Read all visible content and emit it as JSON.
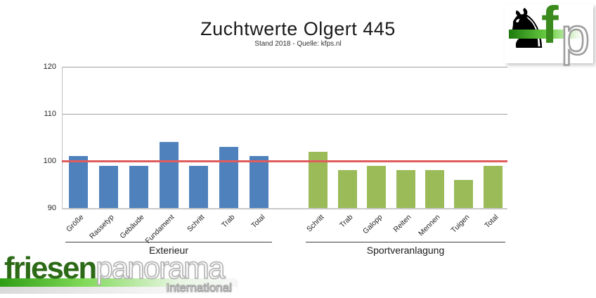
{
  "header": {
    "title": "Zuchtwerte Olgert 445",
    "subtitle": "Stand 2018 - Quelle: kfps.nl"
  },
  "fp_logo": {
    "horse_icon": "black-horse-silhouette",
    "letter_f": "f",
    "letter_p": "p",
    "band_color": "#3a8a1d"
  },
  "chart_data": {
    "type": "bar",
    "title": "Zuchtwerte Olgert 445",
    "subtitle": "Stand 2018 - Quelle: kfps.nl",
    "ylim": [
      90,
      120
    ],
    "yticks": [
      90,
      100,
      110,
      120
    ],
    "grid": true,
    "legend_position": "none",
    "reference_line": 100,
    "reference_line_color": "#e05c5c",
    "groups": [
      {
        "name": "Exterieur",
        "color": "#4f81bd",
        "categories": [
          "Größe",
          "Rassetyp",
          "Gebäude",
          "Fundament",
          "Schritt",
          "Trab",
          "Total"
        ],
        "values": [
          101,
          99,
          99,
          104,
          99,
          103,
          101
        ]
      },
      {
        "name": "Sportveranlagung",
        "color": "#9bbb59",
        "categories": [
          "Schritt",
          "Trab",
          "Galopp",
          "Reiten",
          "Mennen",
          "Tuigen",
          "Total"
        ],
        "values": [
          102,
          98,
          99,
          98,
          98,
          96,
          99
        ]
      }
    ]
  },
  "footer_logo": {
    "brand_primary": "friesen",
    "brand_secondary": "panorama",
    "subtext": "International"
  }
}
